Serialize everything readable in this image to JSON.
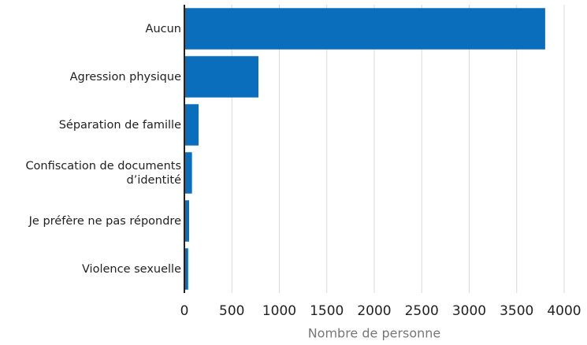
{
  "chart_data": {
    "type": "bar",
    "orientation": "horizontal",
    "categories": [
      "Aucun",
      "Agression physique",
      "Séparation de famille",
      "Confiscation de documents d’identité",
      "Je préfère ne pas répondre",
      "Violence sexuelle"
    ],
    "values": [
      3800,
      780,
      150,
      80,
      50,
      40
    ],
    "color": "#0a6ebd",
    "xlabel": "Nombre de personne",
    "xlim": [
      0,
      4000
    ],
    "xticks": [
      0,
      500,
      1000,
      1500,
      2000,
      2500,
      3000,
      3500,
      4000
    ],
    "grid": true
  }
}
